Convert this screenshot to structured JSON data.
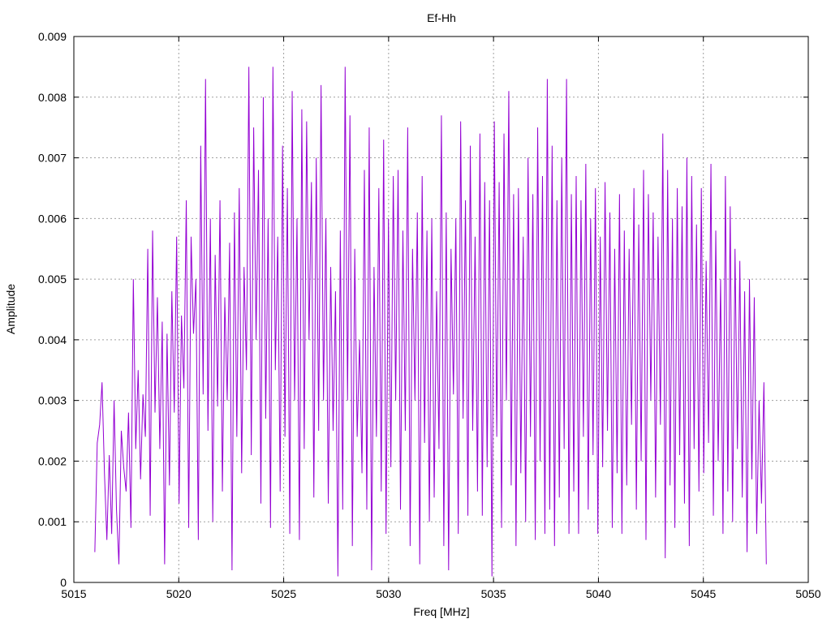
{
  "chart_data": {
    "type": "line",
    "title": "Ef-Hh",
    "xlabel": "Freq [MHz]",
    "ylabel": "Amplitude",
    "xlim": [
      5015,
      5050
    ],
    "ylim": [
      0,
      0.009
    ],
    "x_ticks": [
      "5015",
      "5020",
      "5025",
      "5030",
      "5035",
      "5040",
      "5045",
      "5050"
    ],
    "y_ticks": [
      "0",
      "0.001",
      "0.002",
      "0.003",
      "0.004",
      "0.005",
      "0.006",
      "0.007",
      "0.008",
      "0.009"
    ],
    "grid": true,
    "series_color": "#9400d3",
    "series": [
      {
        "x_start": 5016,
        "x_end": 5048,
        "values": [
          0.0005,
          0.0023,
          0.0026,
          0.0033,
          0.0018,
          0.0007,
          0.0021,
          0.0008,
          0.003,
          0.0012,
          0.0003,
          0.0025,
          0.0019,
          0.0015,
          0.0028,
          0.0009,
          0.005,
          0.0022,
          0.0035,
          0.0017,
          0.0031,
          0.0024,
          0.0055,
          0.0011,
          0.0058,
          0.0028,
          0.0047,
          0.0022,
          0.0043,
          0.0003,
          0.0041,
          0.0016,
          0.0048,
          0.0028,
          0.0057,
          0.0013,
          0.0044,
          0.0032,
          0.0063,
          0.0009,
          0.0057,
          0.0041,
          0.005,
          0.0007,
          0.0072,
          0.0031,
          0.0083,
          0.0025,
          0.006,
          0.001,
          0.0054,
          0.0029,
          0.0063,
          0.0015,
          0.0047,
          0.003,
          0.0056,
          0.0002,
          0.0061,
          0.0024,
          0.0065,
          0.0018,
          0.0052,
          0.0035,
          0.0085,
          0.0021,
          0.0075,
          0.004,
          0.0068,
          0.0013,
          0.008,
          0.0027,
          0.006,
          0.0009,
          0.0085,
          0.0035,
          0.0057,
          0.0015,
          0.0072,
          0.0024,
          0.0065,
          0.0008,
          0.0081,
          0.003,
          0.006,
          0.0007,
          0.0078,
          0.0022,
          0.0076,
          0.004,
          0.0066,
          0.0014,
          0.007,
          0.0025,
          0.0082,
          0.003,
          0.006,
          0.0013,
          0.0052,
          0.0025,
          0.0048,
          0.0001,
          0.0058,
          0.0012,
          0.0085,
          0.003,
          0.0077,
          0.0006,
          0.0055,
          0.0024,
          0.004,
          0.0018,
          0.0068,
          0.0012,
          0.0075,
          0.0002,
          0.0052,
          0.0024,
          0.0065,
          0.0015,
          0.0073,
          0.0008,
          0.006,
          0.0019,
          0.0067,
          0.003,
          0.0068,
          0.0012,
          0.0058,
          0.0025,
          0.0075,
          0.0006,
          0.0055,
          0.003,
          0.0061,
          0.0003,
          0.0067,
          0.0023,
          0.0058,
          0.001,
          0.006,
          0.0014,
          0.0048,
          0.0022,
          0.0077,
          0.0006,
          0.0061,
          0.0002,
          0.0055,
          0.0031,
          0.006,
          0.0008,
          0.0076,
          0.0027,
          0.0063,
          0.0011,
          0.0072,
          0.0025,
          0.0057,
          0.0015,
          0.0074,
          0.0011,
          0.0066,
          0.0019,
          0.0063,
          0.0001,
          0.0076,
          0.0024,
          0.0066,
          0.0009,
          0.0074,
          0.003,
          0.0081,
          0.0016,
          0.0064,
          0.0006,
          0.0065,
          0.0018,
          0.0057,
          0.001,
          0.007,
          0.0024,
          0.0064,
          0.0007,
          0.0075,
          0.002,
          0.0067,
          0.0008,
          0.0083,
          0.0012,
          0.0072,
          0.0006,
          0.0063,
          0.0014,
          0.007,
          0.0022,
          0.0083,
          0.0008,
          0.0064,
          0.0015,
          0.0067,
          0.0008,
          0.0063,
          0.0024,
          0.0069,
          0.0012,
          0.006,
          0.0021,
          0.0065,
          0.0008,
          0.0057,
          0.0019,
          0.0066,
          0.0025,
          0.0061,
          0.0009,
          0.0055,
          0.0018,
          0.0064,
          0.0008,
          0.0058,
          0.0016,
          0.0055,
          0.0026,
          0.0065,
          0.0012,
          0.0059,
          0.002,
          0.0068,
          0.0007,
          0.0064,
          0.003,
          0.0061,
          0.0014,
          0.0057,
          0.0026,
          0.0074,
          0.0004,
          0.0068,
          0.0016,
          0.006,
          0.0009,
          0.0065,
          0.0021,
          0.0062,
          0.0013,
          0.007,
          0.0006,
          0.0067,
          0.0022,
          0.0059,
          0.0015,
          0.0065,
          0.0018,
          0.0053,
          0.0023,
          0.0069,
          0.0011,
          0.0058,
          0.002,
          0.005,
          0.0008,
          0.0067,
          0.0015,
          0.0062,
          0.001,
          0.0055,
          0.0022,
          0.0053,
          0.0014,
          0.0048,
          0.0005,
          0.005,
          0.0017,
          0.0047,
          0.0008,
          0.003,
          0.0013,
          0.0033,
          0.0003
        ]
      }
    ]
  }
}
